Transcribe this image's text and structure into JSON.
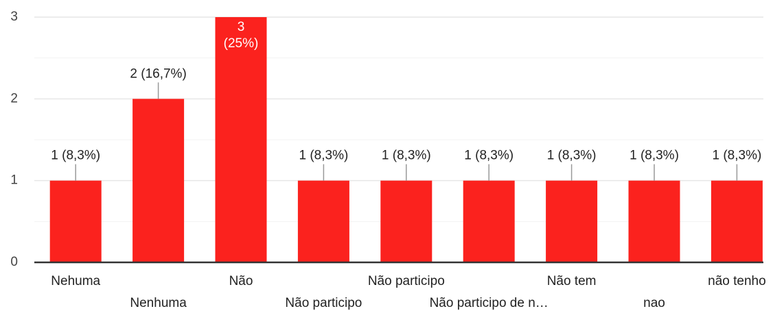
{
  "chart_data": {
    "type": "bar",
    "categories": [
      "Nehuma",
      "Nenhuma",
      "Não",
      "Não participo",
      "Não participo",
      "Não participo de n…",
      "Não tem",
      "nao",
      "não tenho"
    ],
    "values": [
      1,
      2,
      3,
      1,
      1,
      1,
      1,
      1,
      1
    ],
    "value_labels": [
      "1 (8,3%)",
      "2 (16,7%)",
      "3 (25%)",
      "1 (8,3%)",
      "1 (8,3%)",
      "1 (8,3%)",
      "1 (8,3%)",
      "1 (8,3%)",
      "1 (8,3%)"
    ],
    "color": "#fb221e",
    "ylim": [
      0,
      3
    ],
    "yticks": [
      0,
      1,
      2,
      3
    ],
    "grid": true
  }
}
